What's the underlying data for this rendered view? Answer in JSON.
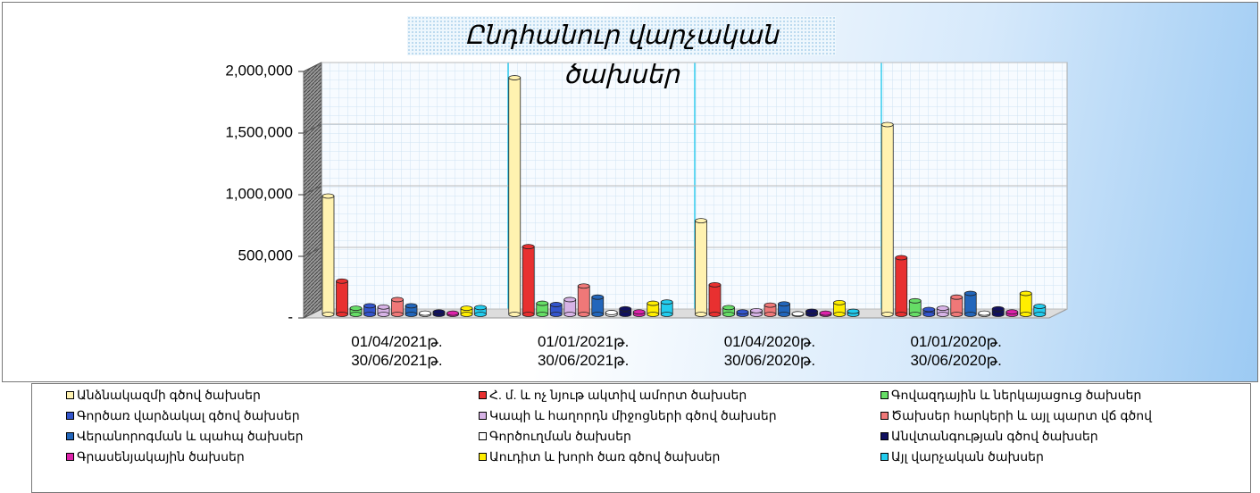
{
  "chart_data": {
    "type": "bar3d",
    "title": "Ընդհանուր վարչական ծախսեր",
    "categories": [
      "01/04/2021թ.\n30/06/2021թ.",
      "01/01/2021թ.\n30/06/2021թ.",
      "01/04/2020թ.\n30/06/2020թ.",
      "01/01/2020թ.\n30/06/2020թ."
    ],
    "ylim": [
      0,
      2000000
    ],
    "yticks": [
      {
        "value": 0,
        "label": "-"
      },
      {
        "value": 500000,
        "label": "500,000"
      },
      {
        "value": 1000000,
        "label": "1,000,000"
      },
      {
        "value": 1500000,
        "label": "1,500,000"
      },
      {
        "value": 2000000,
        "label": "2,000,000"
      }
    ],
    "grid": true,
    "legend": "bottom",
    "series": [
      {
        "name": "Անձնակազմի գծով ծախսեր",
        "color": "#fff2b0",
        "values": [
          960000,
          1920000,
          760000,
          1540000
        ]
      },
      {
        "name": "Հ. մ. և ոչ նյութ ակտիվ ամորտ ծախսեր",
        "color": "#e83030",
        "values": [
          270000,
          550000,
          240000,
          460000
        ]
      },
      {
        "name": "Գովազդային և ներկայացուց ծախսեր",
        "color": "#66dd66",
        "values": [
          50000,
          90000,
          55000,
          110000
        ]
      },
      {
        "name": "Գործառ վարձակալ գծով ծախսեր",
        "color": "#3355cc",
        "values": [
          70000,
          80000,
          20000,
          40000
        ]
      },
      {
        "name": "Կապի և հաղորդն միջոցների գծով ծախսեր",
        "color": "#d7b3e6",
        "values": [
          60000,
          120000,
          30000,
          50000
        ]
      },
      {
        "name": "Ծախսեր հարկերի և այլ պարտ վճ գծով",
        "color": "#f07878",
        "values": [
          120000,
          230000,
          75000,
          140000
        ]
      },
      {
        "name": "Վերանորոգման և պահպ ծախսեր",
        "color": "#2266bb",
        "values": [
          70000,
          140000,
          85000,
          170000
        ]
      },
      {
        "name": "Գործուղման ծախսեր",
        "color": "#ffffff",
        "values": [
          10000,
          15000,
          5000,
          10000
        ]
      },
      {
        "name": "Անվտանգության գծով ծախսեր",
        "color": "#101060",
        "values": [
          20000,
          45000,
          25000,
          45000
        ]
      },
      {
        "name": "Գրասենյակային ծախսեր",
        "color": "#dd22aa",
        "values": [
          10000,
          20000,
          10000,
          20000
        ]
      },
      {
        "name": "Աուդիտ և խորհ ծառ գծով ծախսեր",
        "color": "#ffee00",
        "values": [
          50000,
          90000,
          95000,
          170000
        ]
      },
      {
        "name": "Այլ վարչական ծախսեր",
        "color": "#22ccee",
        "values": [
          55000,
          100000,
          25000,
          65000
        ]
      }
    ]
  }
}
